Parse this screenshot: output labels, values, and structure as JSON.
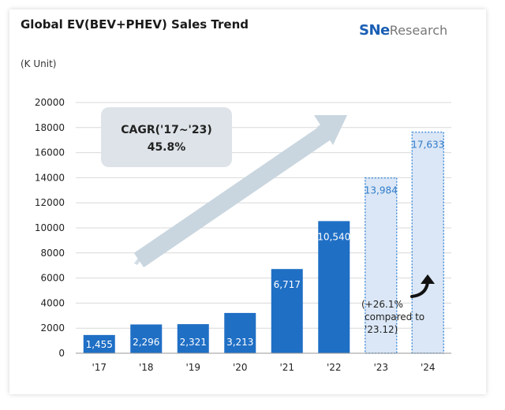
{
  "title": "Global EV(BEV+PHEV) Sales Trend",
  "unit_label": "(K Unit)",
  "logo": {
    "sne": "SNe",
    "research": "Research"
  },
  "cagr": {
    "label": "CAGR('17~'23)",
    "value": "45.8%"
  },
  "note": [
    "(+26.1%",
    "compared to",
    "'23.12)"
  ],
  "colors": {
    "bar_actual": "#1f6fc5",
    "bar_forecast": "#dbe7f6",
    "forecast_border": "#4a90d9",
    "forecast_label": "#2f7bc9",
    "grid": "#d9d9d9",
    "cagr_box": "#dde3e8",
    "arrow": "#c9d6df"
  },
  "chart_data": {
    "type": "bar",
    "title": "Global EV(BEV+PHEV) Sales Trend",
    "ylabel": "(K Unit)",
    "categories": [
      "'17",
      "'18",
      "'19",
      "'20",
      "'21",
      "'22",
      "'23",
      "'24"
    ],
    "values": [
      1455,
      2296,
      2321,
      3213,
      6717,
      10540,
      13984,
      17633
    ],
    "data_labels": [
      "1,455",
      "2,296",
      "2,321",
      "3,213",
      "6,717",
      "10,540",
      "13,984",
      "17,633"
    ],
    "forecast": [
      false,
      false,
      false,
      false,
      false,
      false,
      true,
      true
    ],
    "ylim": [
      0,
      20000
    ],
    "yticks": [
      0,
      2000,
      4000,
      6000,
      8000,
      10000,
      12000,
      14000,
      16000,
      18000,
      20000
    ],
    "grid": true
  }
}
